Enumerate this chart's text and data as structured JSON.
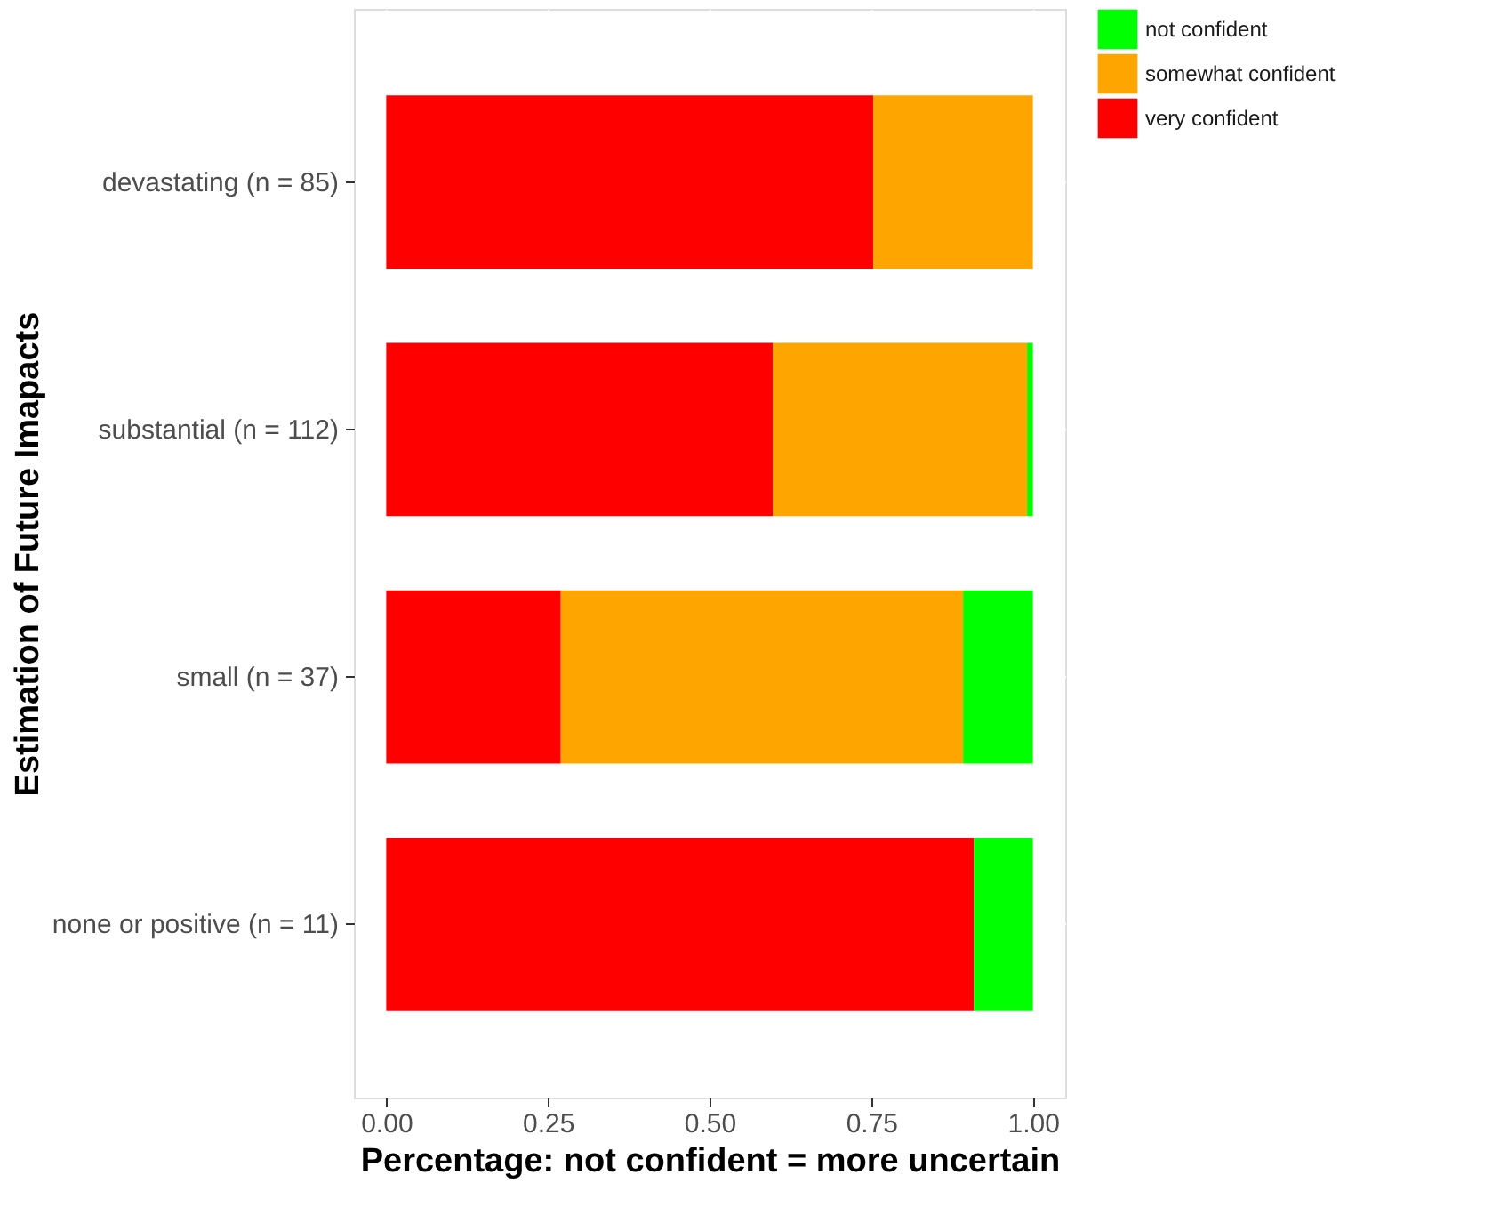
{
  "chart_data": {
    "type": "bar",
    "orientation": "horizontal",
    "stacked": true,
    "xlabel": "Percentage: not confident = more uncertain",
    "ylabel": "Estimation of Future Imapacts",
    "categories": [
      "devastating (n = 85)",
      "substantial (n = 112)",
      "small (n = 37)",
      "none or positive (n = 11)"
    ],
    "series": [
      {
        "name": "very confident",
        "color": "#ff0000",
        "values": [
          0.753,
          0.598,
          0.27,
          0.909
        ]
      },
      {
        "name": "somewhat confident",
        "color": "#ffa500",
        "values": [
          0.247,
          0.393,
          0.622,
          null
        ]
      },
      {
        "name": "not confident",
        "color": "#00ff00",
        "values": [
          null,
          0.009,
          0.108,
          0.091
        ]
      }
    ],
    "xlim": [
      -0.05,
      1.05
    ],
    "xticks": [
      {
        "value": 0,
        "label": "0.00"
      },
      {
        "value": 0.25,
        "label": "0.25"
      },
      {
        "value": 0.5,
        "label": "0.50"
      },
      {
        "value": 0.75,
        "label": "0.75"
      },
      {
        "value": 1,
        "label": "1.00"
      }
    ],
    "grid": true,
    "legend": "right"
  }
}
